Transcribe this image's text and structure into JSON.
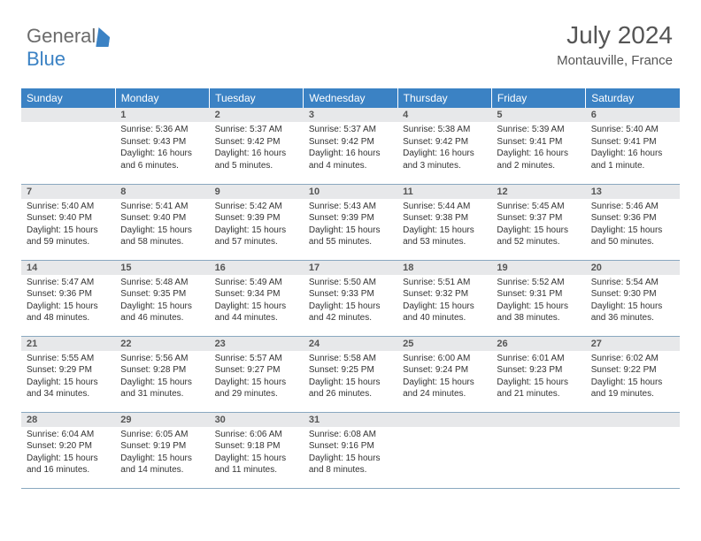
{
  "brand": {
    "part1": "General",
    "part2": "Blue"
  },
  "header": {
    "month": "July 2024",
    "location": "Montauville, France"
  },
  "style": {
    "header_bg": "#3b82c4",
    "header_fg": "#ffffff",
    "daynum_bg": "#e7e8ea",
    "row_border": "#8aa8c0",
    "text_color": "#333333",
    "body_font_size": 10,
    "header_font_size": 12
  },
  "weekdays": [
    "Sunday",
    "Monday",
    "Tuesday",
    "Wednesday",
    "Thursday",
    "Friday",
    "Saturday"
  ],
  "start_offset": 1,
  "days": [
    {
      "n": 1,
      "sunrise": "5:36 AM",
      "sunset": "9:43 PM",
      "daylight": "16 hours and 6 minutes."
    },
    {
      "n": 2,
      "sunrise": "5:37 AM",
      "sunset": "9:42 PM",
      "daylight": "16 hours and 5 minutes."
    },
    {
      "n": 3,
      "sunrise": "5:37 AM",
      "sunset": "9:42 PM",
      "daylight": "16 hours and 4 minutes."
    },
    {
      "n": 4,
      "sunrise": "5:38 AM",
      "sunset": "9:42 PM",
      "daylight": "16 hours and 3 minutes."
    },
    {
      "n": 5,
      "sunrise": "5:39 AM",
      "sunset": "9:41 PM",
      "daylight": "16 hours and 2 minutes."
    },
    {
      "n": 6,
      "sunrise": "5:40 AM",
      "sunset": "9:41 PM",
      "daylight": "16 hours and 1 minute."
    },
    {
      "n": 7,
      "sunrise": "5:40 AM",
      "sunset": "9:40 PM",
      "daylight": "15 hours and 59 minutes."
    },
    {
      "n": 8,
      "sunrise": "5:41 AM",
      "sunset": "9:40 PM",
      "daylight": "15 hours and 58 minutes."
    },
    {
      "n": 9,
      "sunrise": "5:42 AM",
      "sunset": "9:39 PM",
      "daylight": "15 hours and 57 minutes."
    },
    {
      "n": 10,
      "sunrise": "5:43 AM",
      "sunset": "9:39 PM",
      "daylight": "15 hours and 55 minutes."
    },
    {
      "n": 11,
      "sunrise": "5:44 AM",
      "sunset": "9:38 PM",
      "daylight": "15 hours and 53 minutes."
    },
    {
      "n": 12,
      "sunrise": "5:45 AM",
      "sunset": "9:37 PM",
      "daylight": "15 hours and 52 minutes."
    },
    {
      "n": 13,
      "sunrise": "5:46 AM",
      "sunset": "9:36 PM",
      "daylight": "15 hours and 50 minutes."
    },
    {
      "n": 14,
      "sunrise": "5:47 AM",
      "sunset": "9:36 PM",
      "daylight": "15 hours and 48 minutes."
    },
    {
      "n": 15,
      "sunrise": "5:48 AM",
      "sunset": "9:35 PM",
      "daylight": "15 hours and 46 minutes."
    },
    {
      "n": 16,
      "sunrise": "5:49 AM",
      "sunset": "9:34 PM",
      "daylight": "15 hours and 44 minutes."
    },
    {
      "n": 17,
      "sunrise": "5:50 AM",
      "sunset": "9:33 PM",
      "daylight": "15 hours and 42 minutes."
    },
    {
      "n": 18,
      "sunrise": "5:51 AM",
      "sunset": "9:32 PM",
      "daylight": "15 hours and 40 minutes."
    },
    {
      "n": 19,
      "sunrise": "5:52 AM",
      "sunset": "9:31 PM",
      "daylight": "15 hours and 38 minutes."
    },
    {
      "n": 20,
      "sunrise": "5:54 AM",
      "sunset": "9:30 PM",
      "daylight": "15 hours and 36 minutes."
    },
    {
      "n": 21,
      "sunrise": "5:55 AM",
      "sunset": "9:29 PM",
      "daylight": "15 hours and 34 minutes."
    },
    {
      "n": 22,
      "sunrise": "5:56 AM",
      "sunset": "9:28 PM",
      "daylight": "15 hours and 31 minutes."
    },
    {
      "n": 23,
      "sunrise": "5:57 AM",
      "sunset": "9:27 PM",
      "daylight": "15 hours and 29 minutes."
    },
    {
      "n": 24,
      "sunrise": "5:58 AM",
      "sunset": "9:25 PM",
      "daylight": "15 hours and 26 minutes."
    },
    {
      "n": 25,
      "sunrise": "6:00 AM",
      "sunset": "9:24 PM",
      "daylight": "15 hours and 24 minutes."
    },
    {
      "n": 26,
      "sunrise": "6:01 AM",
      "sunset": "9:23 PM",
      "daylight": "15 hours and 21 minutes."
    },
    {
      "n": 27,
      "sunrise": "6:02 AM",
      "sunset": "9:22 PM",
      "daylight": "15 hours and 19 minutes."
    },
    {
      "n": 28,
      "sunrise": "6:04 AM",
      "sunset": "9:20 PM",
      "daylight": "15 hours and 16 minutes."
    },
    {
      "n": 29,
      "sunrise": "6:05 AM",
      "sunset": "9:19 PM",
      "daylight": "15 hours and 14 minutes."
    },
    {
      "n": 30,
      "sunrise": "6:06 AM",
      "sunset": "9:18 PM",
      "daylight": "15 hours and 11 minutes."
    },
    {
      "n": 31,
      "sunrise": "6:08 AM",
      "sunset": "9:16 PM",
      "daylight": "15 hours and 8 minutes."
    }
  ],
  "labels": {
    "sunrise": "Sunrise:",
    "sunset": "Sunset:",
    "daylight": "Daylight:"
  }
}
